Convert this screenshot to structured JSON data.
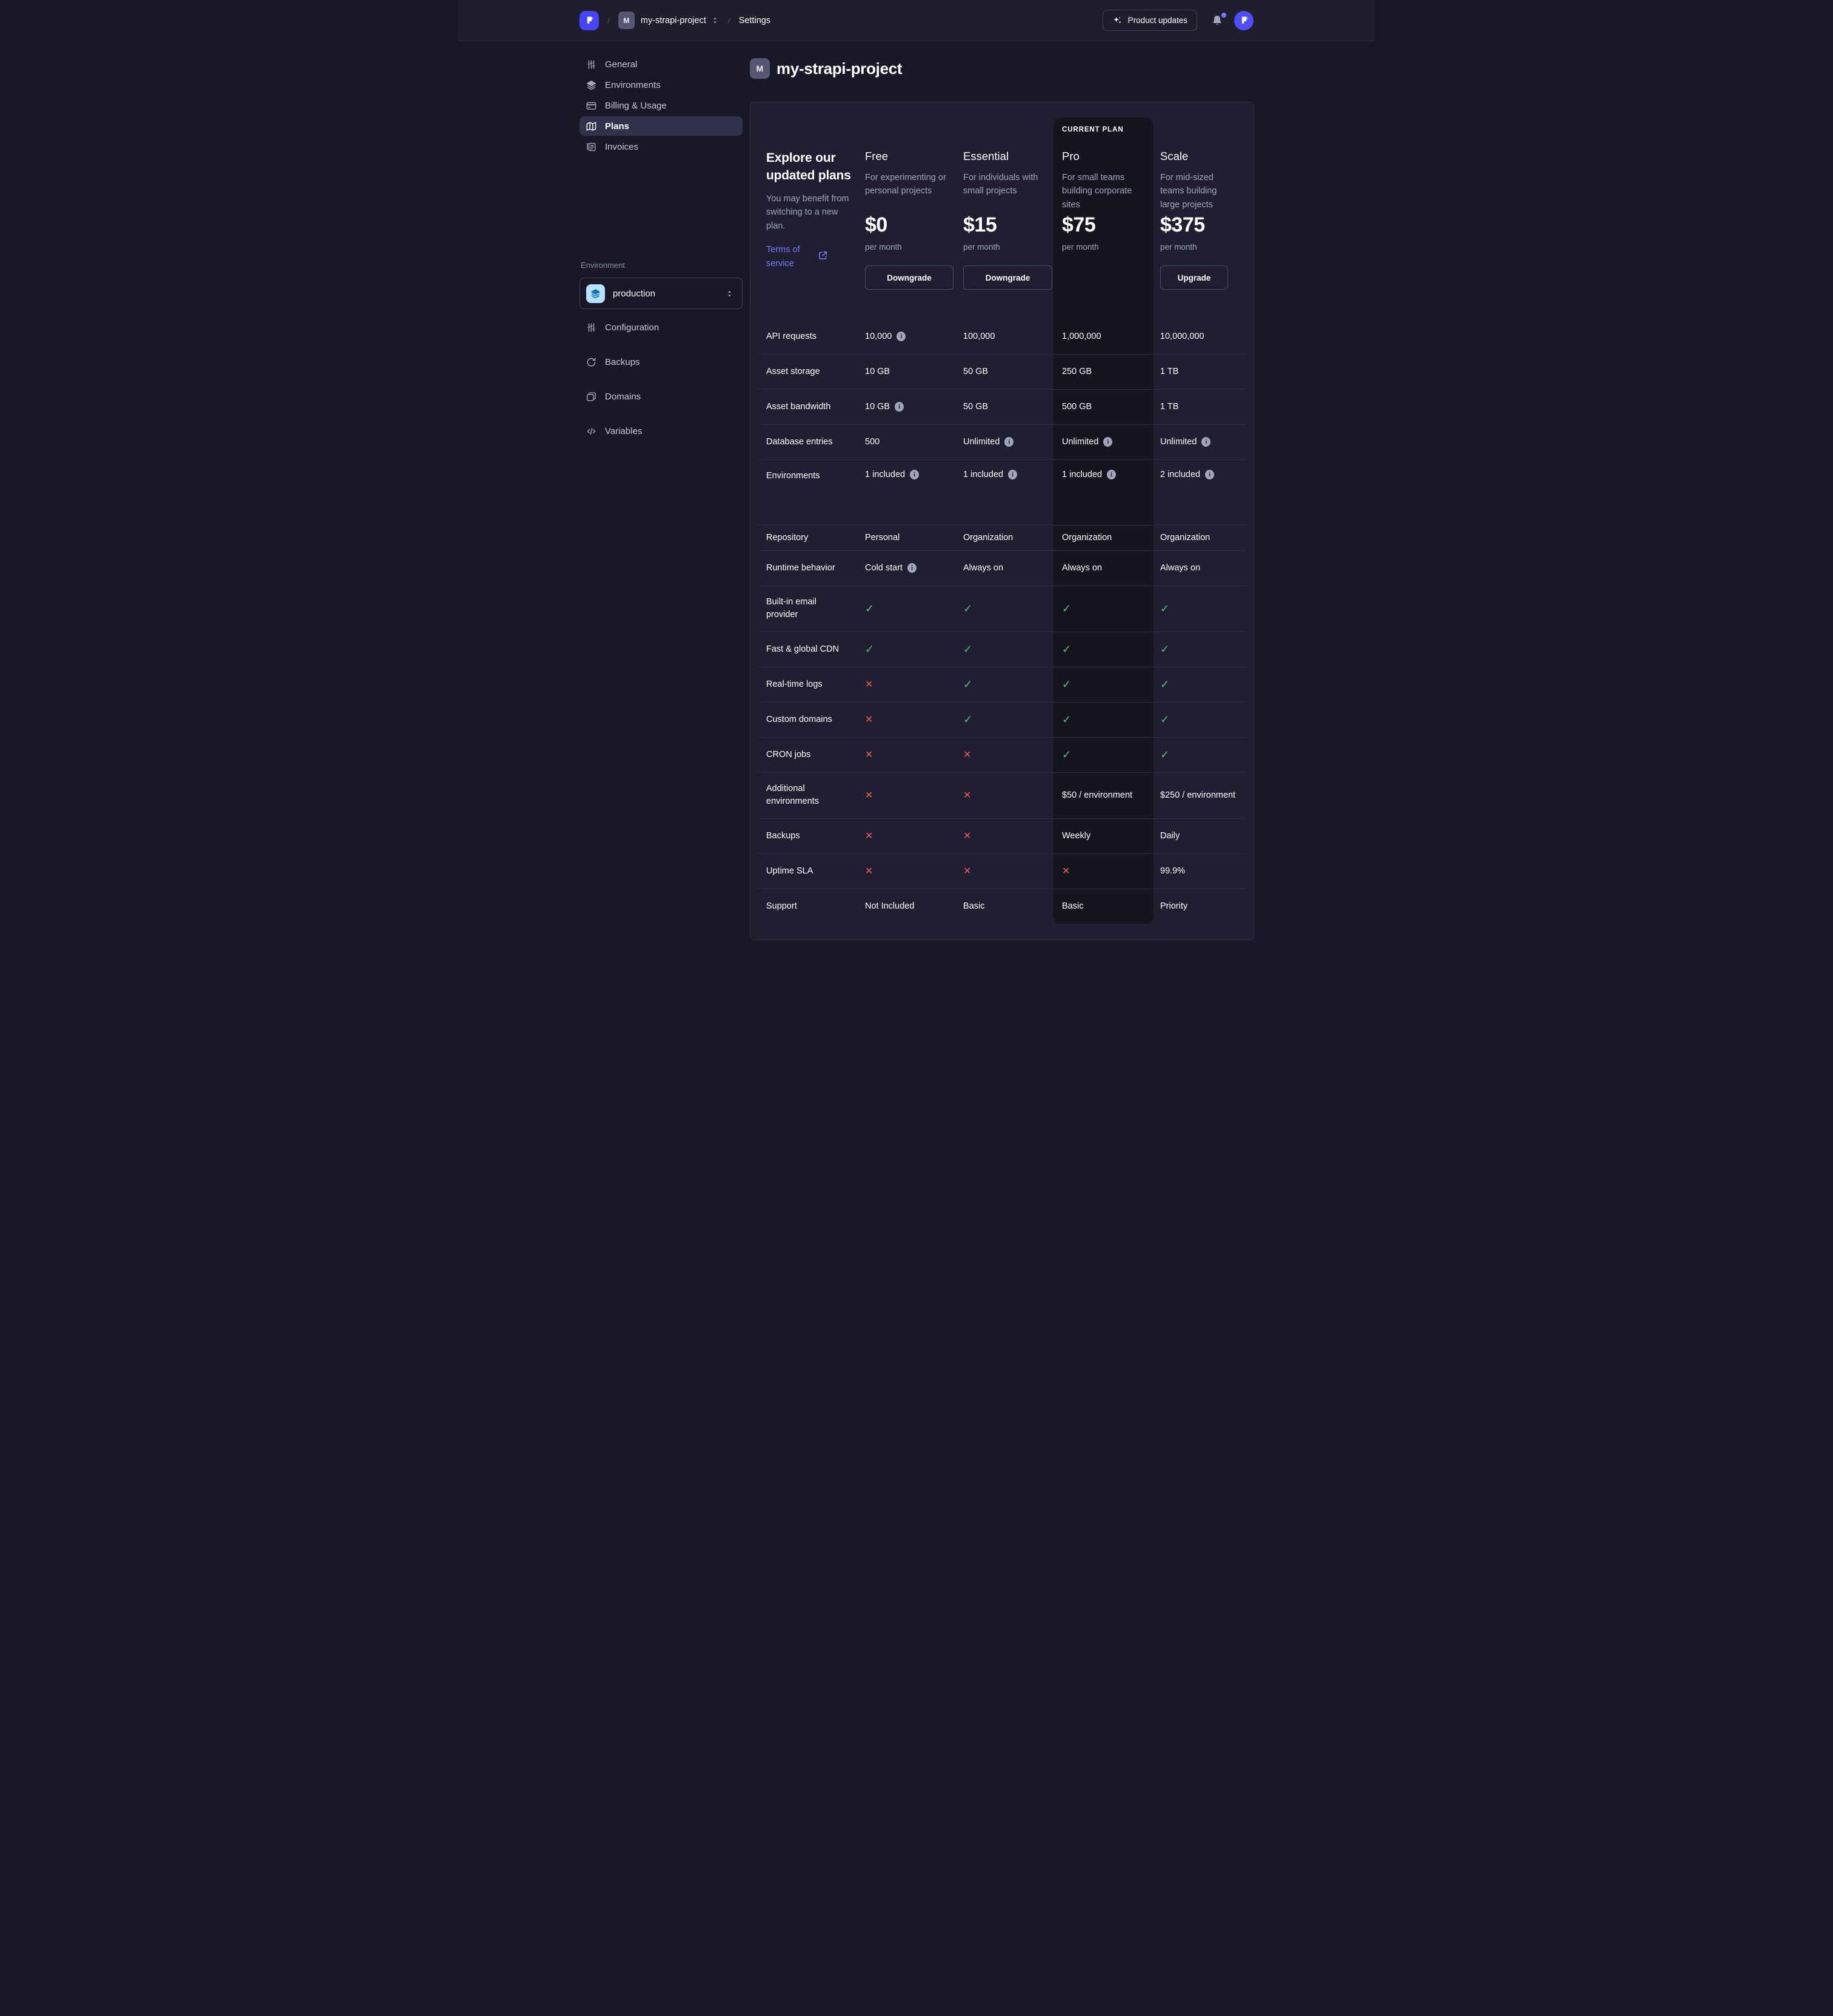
{
  "topbar": {
    "breadcrumb": {
      "separator": "/",
      "project_initial": "M",
      "project": "my-strapi-project",
      "section": "Settings"
    },
    "product_updates": {
      "label": "Product updates"
    }
  },
  "sidebar": {
    "items": [
      {
        "label": "General",
        "icon": "sliders-icon",
        "active": false
      },
      {
        "label": "Environments",
        "icon": "layers-icon",
        "active": false
      },
      {
        "label": "Billing & Usage",
        "icon": "credit-card-icon",
        "active": false
      },
      {
        "label": "Plans",
        "icon": "map-icon",
        "active": true
      },
      {
        "label": "Invoices",
        "icon": "invoice-icon",
        "active": false
      }
    ],
    "environment_section": {
      "label": "Environment",
      "selected": "production",
      "items": [
        {
          "label": "Configuration",
          "icon": "sliders-icon"
        },
        {
          "label": "Backups",
          "icon": "refresh-icon"
        },
        {
          "label": "Domains",
          "icon": "stack-icon"
        },
        {
          "label": "Variables",
          "icon": "code-icon"
        }
      ]
    }
  },
  "page": {
    "title_initial": "M",
    "title": "my-strapi-project"
  },
  "plans": {
    "intro": {
      "title": "Explore our updated plans",
      "subtitle": "You may benefit from switching to a new plan.",
      "link_label": "Terms of service"
    },
    "current_plan_badge": "CURRENT PLAN",
    "columns": [
      {
        "name": "Free",
        "description": "For experimenting or personal projects",
        "price": "$0",
        "period": "per month",
        "action": "Downgrade",
        "current": false
      },
      {
        "name": "Essential",
        "description": "For individuals with small projects",
        "price": "$15",
        "period": "per month",
        "action": "Downgrade",
        "current": false
      },
      {
        "name": "Pro",
        "description": "For small teams building corporate sites",
        "price": "$75",
        "period": "per month",
        "action": "",
        "current": true
      },
      {
        "name": "Scale",
        "description": "For mid-sized teams building large projects",
        "price": "$375",
        "period": "per month",
        "action": "Upgrade",
        "current": false
      }
    ],
    "features": [
      {
        "label": "API requests",
        "values": [
          {
            "text": "10,000",
            "info": true
          },
          {
            "text": "100,000"
          },
          {
            "text": "1,000,000"
          },
          {
            "text": "10,000,000"
          }
        ]
      },
      {
        "label": "Asset storage",
        "values": [
          {
            "text": "10 GB"
          },
          {
            "text": "50 GB"
          },
          {
            "text": "250 GB"
          },
          {
            "text": "1 TB"
          }
        ]
      },
      {
        "label": "Asset bandwidth",
        "values": [
          {
            "text": "10 GB",
            "info": true
          },
          {
            "text": "50 GB"
          },
          {
            "text": "500 GB"
          },
          {
            "text": "1 TB"
          }
        ]
      },
      {
        "label": "Database entries",
        "values": [
          {
            "text": "500"
          },
          {
            "text": "Unlimited",
            "info": true
          },
          {
            "text": "Unlimited",
            "info": true
          },
          {
            "text": "Unlimited",
            "info": true
          }
        ]
      },
      {
        "label": "Environments",
        "tall": true,
        "values": [
          {
            "text": "1 included",
            "info": true
          },
          {
            "text": "1 included",
            "info": true
          },
          {
            "text": "1 included",
            "info": true
          },
          {
            "text": "2 included",
            "info": true
          }
        ]
      },
      {
        "label": "Repository",
        "short": true,
        "values": [
          {
            "text": "Personal"
          },
          {
            "text": "Organization"
          },
          {
            "text": "Organization"
          },
          {
            "text": "Organization"
          }
        ]
      },
      {
        "label": "Runtime behavior",
        "values": [
          {
            "text": "Cold start",
            "info": true
          },
          {
            "text": "Always on"
          },
          {
            "text": "Always on"
          },
          {
            "text": "Always on"
          }
        ]
      },
      {
        "label": "Built-in email provider",
        "two_line": true,
        "values": [
          {
            "mark": "yes"
          },
          {
            "mark": "yes"
          },
          {
            "mark": "yes"
          },
          {
            "mark": "yes"
          }
        ]
      },
      {
        "label": "Fast & global CDN",
        "values": [
          {
            "mark": "yes"
          },
          {
            "mark": "yes"
          },
          {
            "mark": "yes"
          },
          {
            "mark": "yes"
          }
        ]
      },
      {
        "label": "Real-time logs",
        "values": [
          {
            "mark": "no"
          },
          {
            "mark": "yes"
          },
          {
            "mark": "yes"
          },
          {
            "mark": "yes"
          }
        ]
      },
      {
        "label": "Custom domains",
        "values": [
          {
            "mark": "no"
          },
          {
            "mark": "yes"
          },
          {
            "mark": "yes"
          },
          {
            "mark": "yes"
          }
        ]
      },
      {
        "label": "CRON jobs",
        "values": [
          {
            "mark": "no"
          },
          {
            "mark": "no"
          },
          {
            "mark": "yes"
          },
          {
            "mark": "yes"
          }
        ]
      },
      {
        "label": "Additional environments",
        "two_line": true,
        "values": [
          {
            "mark": "no"
          },
          {
            "mark": "no"
          },
          {
            "text": "$50 / environment"
          },
          {
            "text": "$250 / environment"
          }
        ]
      },
      {
        "label": "Backups",
        "values": [
          {
            "mark": "no"
          },
          {
            "mark": "no"
          },
          {
            "text": "Weekly"
          },
          {
            "text": "Daily"
          }
        ]
      },
      {
        "label": "Uptime SLA",
        "values": [
          {
            "mark": "no"
          },
          {
            "mark": "no"
          },
          {
            "mark": "no"
          },
          {
            "text": "99.9%"
          }
        ]
      },
      {
        "label": "Support",
        "values": [
          {
            "text": "Not Included"
          },
          {
            "text": "Basic"
          },
          {
            "text": "Basic"
          },
          {
            "text": "Priority"
          }
        ]
      }
    ]
  },
  "colors": {
    "accent": "#4945ff",
    "accent_light": "#7b79ff",
    "success": "#5fb97d",
    "danger": "#ee5e52",
    "env_chip_bg": "#b8e1ff",
    "env_chip_icon": "#0c75af"
  }
}
